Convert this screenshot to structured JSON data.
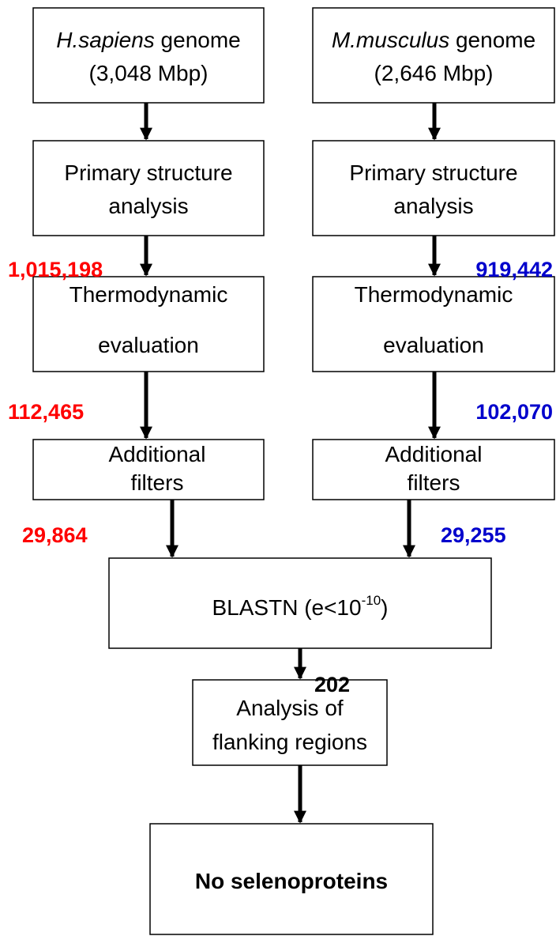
{
  "nodes": [
    {
      "species": "H.sapiens",
      "label": "genome",
      "detail": "(3,048 Mbp)"
    },
    {
      "species": "M.musculus",
      "label": "genome",
      "detail": "(2,646 Mbp)"
    },
    {
      "lines": [
        "Primary structure",
        "analysis"
      ]
    },
    {
      "lines": [
        "Primary structure",
        "analysis"
      ]
    },
    {
      "lines": [
        "Thermodynamic",
        "evaluation"
      ]
    },
    {
      "lines": [
        "Thermodynamic",
        "evaluation"
      ]
    },
    {
      "lines": [
        "Additional",
        "filters"
      ]
    },
    {
      "lines": [
        "Additional",
        "filters"
      ]
    },
    {
      "label": "BLASTN (e<10",
      "superscript": "-10",
      "close": ")"
    },
    {
      "lines": [
        "Analysis of",
        "flanking regions"
      ]
    },
    {
      "lines": [
        "No selenoproteins"
      ]
    }
  ],
  "counts": [
    "1,015,198",
    "112,465",
    "29,864",
    "919,442",
    "102,070",
    "29,255",
    "202"
  ]
}
